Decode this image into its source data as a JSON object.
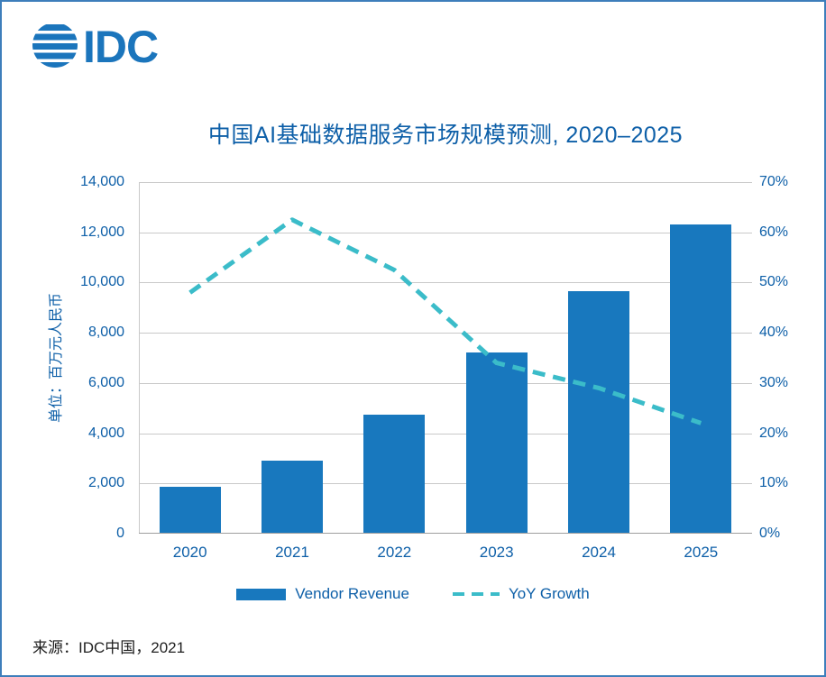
{
  "logo": {
    "text": "IDC"
  },
  "title": "中国AI基础数据服务市场规模预测, 2020–2025",
  "y_axis_label": "单位：百万元人民币",
  "source": "来源：IDC中国，2021",
  "colors": {
    "bar": "#1878BE",
    "line": "#3BBCC9",
    "text": "#0D5FA8",
    "grid": "#C9C9C9",
    "axis": "#9F9F9F",
    "border": "#3D7EBB",
    "logo": "#1B75BC",
    "source_text": "#1F1F1F"
  },
  "chart_data": {
    "type": "bar",
    "title": "中国AI基础数据服务市场规模预测, 2020–2025",
    "categories": [
      "2020",
      "2021",
      "2022",
      "2023",
      "2024",
      "2025"
    ],
    "series": [
      {
        "name": "Vendor Revenue",
        "type": "bar",
        "axis": "left",
        "values": [
          1850,
          2900,
          4750,
          7200,
          9650,
          12300
        ]
      },
      {
        "name": "YoY Growth",
        "type": "line",
        "axis": "right",
        "values": [
          48,
          62.5,
          52.5,
          34,
          29,
          22
        ],
        "unit": "%",
        "style": "dashed"
      }
    ],
    "left_axis": {
      "label": "单位：百万元人民币",
      "min": 0,
      "max": 14000,
      "step": 2000
    },
    "right_axis": {
      "min": 0,
      "max": 70,
      "step": 10,
      "suffix": "%"
    },
    "grid": true,
    "legend_position": "bottom"
  }
}
